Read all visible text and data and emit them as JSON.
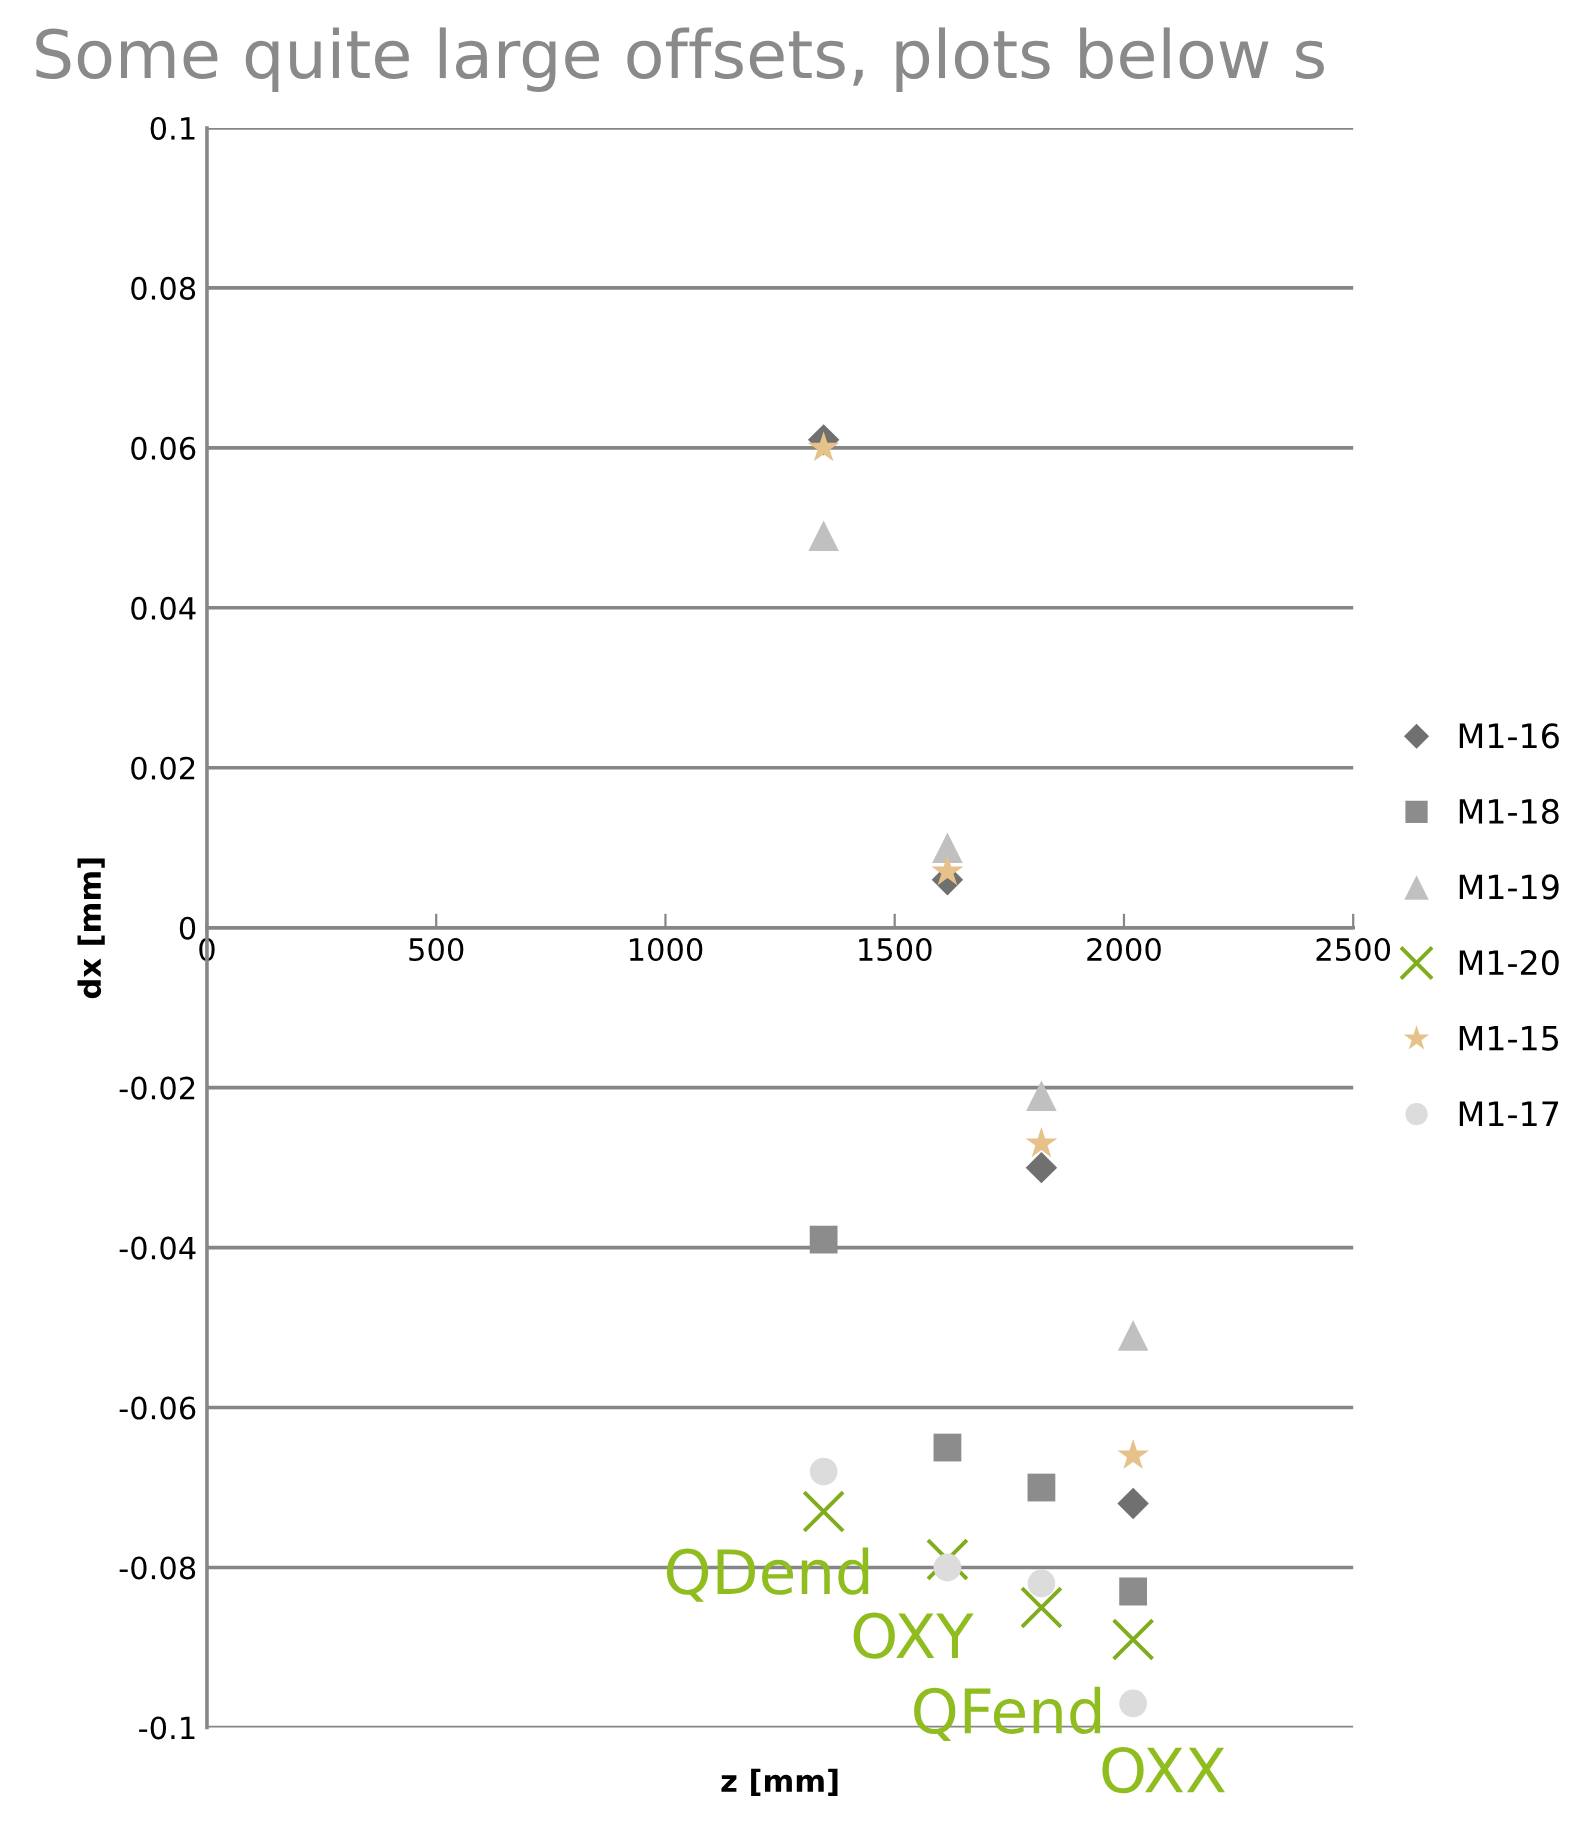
{
  "chart_data": {
    "type": "scatter",
    "title": "Some quite large offsets, plots below s",
    "xlabel": "z [mm]",
    "ylabel": "dx [mm]",
    "x": [
      1345,
      1615,
      1820,
      2020
    ],
    "series": [
      {
        "name": "M1-16",
        "color": "#707070",
        "marker": "diamond",
        "values": [
          0.061,
          0.006,
          -0.03,
          -0.072
        ]
      },
      {
        "name": "M1-18",
        "color": "#8c8c8c",
        "marker": "square",
        "values": [
          -0.039,
          -0.065,
          -0.07,
          -0.083
        ]
      },
      {
        "name": "M1-19",
        "color": "#c0c0c0",
        "marker": "triangle",
        "values": [
          0.049,
          0.01,
          -0.021,
          -0.051
        ]
      },
      {
        "name": "M1-20",
        "color": "#7fad1c",
        "marker": "cross",
        "values": [
          -0.073,
          -0.079,
          -0.085,
          -0.089
        ]
      },
      {
        "name": "M1-15",
        "color": "#e6c18a",
        "marker": "star",
        "values": [
          0.06,
          0.007,
          -0.027,
          -0.066
        ]
      },
      {
        "name": "M1-17",
        "color": "#dcdcdc",
        "marker": "circle",
        "values": [
          -0.068,
          -0.08,
          -0.082,
          -0.097
        ]
      }
    ],
    "annotations": [
      "QDend",
      "OXY",
      "QFend",
      "OXX"
    ],
    "xlim": [
      0,
      2500
    ],
    "xticks": [
      0,
      500,
      1000,
      1500,
      2000,
      2500
    ],
    "ylim": [
      -0.1,
      0.1
    ],
    "yticks": [
      -0.1,
      -0.08,
      -0.06,
      -0.04,
      -0.02,
      0,
      0.02,
      0.04,
      0.06,
      0.08,
      0.1
    ],
    "grid": "y",
    "legend": "right"
  }
}
